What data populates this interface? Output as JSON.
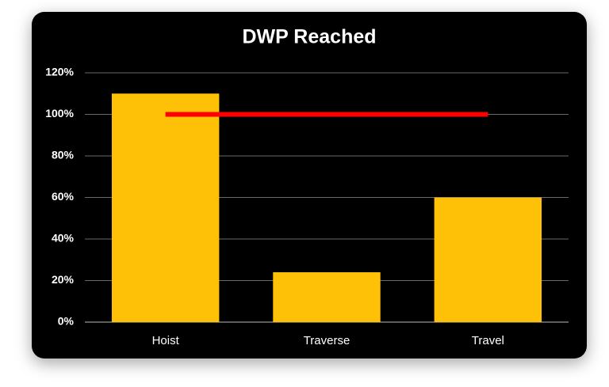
{
  "chart_data": {
    "type": "bar",
    "title": "DWP Reached",
    "categories": [
      "Hoist",
      "Traverse",
      "Travel"
    ],
    "series": [
      {
        "type": "bar",
        "color": "#ffc107",
        "values": [
          110,
          24,
          60
        ]
      },
      {
        "type": "line",
        "color": "#ff0000",
        "values": [
          100,
          100,
          100
        ]
      }
    ],
    "ylim": [
      0,
      120
    ],
    "yticks": [
      {
        "value": 0,
        "label": "0%"
      },
      {
        "value": 20,
        "label": "20%"
      },
      {
        "value": 40,
        "label": "40%"
      },
      {
        "value": 60,
        "label": "60%"
      },
      {
        "value": 80,
        "label": "80%"
      },
      {
        "value": 100,
        "label": "100%"
      },
      {
        "value": 120,
        "label": "120%"
      }
    ],
    "grid": true
  }
}
